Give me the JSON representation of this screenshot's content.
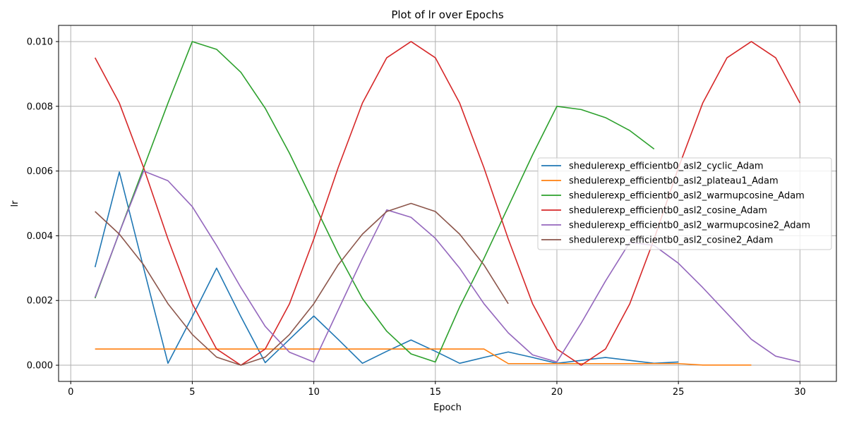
{
  "chart_data": {
    "type": "line",
    "title": "Plot of lr over Epochs",
    "xlabel": "Epoch",
    "ylabel": "lr",
    "xlim": [
      -0.5,
      31.5
    ],
    "ylim": [
      -0.0005,
      0.0105
    ],
    "xticks": [
      0,
      5,
      10,
      15,
      20,
      25,
      30
    ],
    "yticks": [
      0.0,
      0.002,
      0.004,
      0.006,
      0.008,
      0.01
    ],
    "ytick_labels": [
      "0.000",
      "0.002",
      "0.004",
      "0.006",
      "0.008",
      "0.010"
    ],
    "grid": true,
    "legend_position": "center-right",
    "series": [
      {
        "name": "shedulerexp_efficientb0_asl2_cyclic_Adam",
        "color": "#1f77b4",
        "x": [
          1,
          2,
          3,
          4,
          5,
          6,
          7,
          8,
          9,
          10,
          11,
          12,
          13,
          14,
          15,
          16,
          17,
          18,
          19,
          20,
          21,
          22,
          23,
          24,
          25
        ],
        "y": [
          0.00303,
          0.00597,
          0.003,
          6e-05,
          0.0015,
          0.003,
          0.0015,
          8e-05,
          0.0008,
          0.00152,
          0.0008,
          6e-05,
          0.00043,
          0.00078,
          0.00043,
          6e-05,
          0.00024,
          0.00041,
          0.00024,
          6e-05,
          0.00015,
          0.00024,
          0.00015,
          6e-05,
          0.0001
        ]
      },
      {
        "name": "shedulerexp_efficientb0_asl2_plateau1_Adam",
        "color": "#ff7f0e",
        "x": [
          1,
          2,
          3,
          4,
          5,
          6,
          7,
          8,
          9,
          10,
          11,
          12,
          13,
          14,
          15,
          16,
          17,
          18,
          19,
          20,
          21,
          22,
          23,
          24,
          25,
          26,
          27,
          28
        ],
        "y": [
          0.0005,
          0.0005,
          0.0005,
          0.0005,
          0.0005,
          0.0005,
          0.0005,
          0.0005,
          0.0005,
          0.0005,
          0.0005,
          0.0005,
          0.0005,
          0.0005,
          0.0005,
          0.0005,
          0.0005,
          5e-05,
          5e-05,
          5e-05,
          5e-05,
          5e-05,
          5e-05,
          5e-05,
          5e-05,
          5e-06,
          5e-06,
          5e-06
        ]
      },
      {
        "name": "shedulerexp_efficientb0_asl2_warmupcosine_Adam",
        "color": "#2ca02c",
        "x": [
          1,
          2,
          3,
          4,
          5,
          6,
          7,
          8,
          9,
          10,
          11,
          12,
          13,
          14,
          15,
          16,
          17,
          18,
          19,
          20,
          21,
          22,
          23,
          24
        ],
        "y": [
          0.00207,
          0.0041,
          0.0061,
          0.0081,
          0.01,
          0.00976,
          0.00905,
          0.00794,
          0.00655,
          0.005,
          0.00345,
          0.00206,
          0.00105,
          0.00035,
          0.0001,
          0.0018,
          0.0033,
          0.0049,
          0.0065,
          0.008,
          0.0079,
          0.00765,
          0.00725,
          0.00668
        ]
      },
      {
        "name": "shedulerexp_efficientb0_asl2_cosine_Adam",
        "color": "#d62728",
        "x": [
          1,
          2,
          3,
          4,
          5,
          6,
          7,
          8,
          9,
          10,
          11,
          12,
          13,
          14,
          15,
          16,
          17,
          18,
          19,
          20,
          21,
          22,
          23,
          24,
          25,
          26,
          27,
          28,
          29,
          30
        ],
        "y": [
          0.0095,
          0.0081,
          0.0061,
          0.0039,
          0.0019,
          0.0005,
          0.0,
          0.0005,
          0.0019,
          0.0039,
          0.0061,
          0.0081,
          0.0095,
          0.01,
          0.0095,
          0.0081,
          0.0061,
          0.0039,
          0.0019,
          0.0005,
          0.0,
          0.0005,
          0.0019,
          0.0039,
          0.0061,
          0.0081,
          0.0095,
          0.01,
          0.0095,
          0.0081
        ]
      },
      {
        "name": "shedulerexp_efficientb0_asl2_warmupcosine2_Adam",
        "color": "#9467bd",
        "x": [
          1,
          2,
          3,
          4,
          5,
          6,
          7,
          8,
          9,
          10,
          11,
          12,
          13,
          14,
          15,
          16,
          17,
          18,
          19,
          20,
          21,
          22,
          23,
          24,
          25,
          26,
          27,
          28,
          29,
          30
        ],
        "y": [
          0.0021,
          0.0041,
          0.006,
          0.0057,
          0.0049,
          0.0037,
          0.0024,
          0.0012,
          0.0004,
          0.0001,
          0.0017,
          0.0033,
          0.0048,
          0.00457,
          0.00392,
          0.003,
          0.0019,
          0.001,
          0.00032,
          0.0001,
          0.0013,
          0.0026,
          0.0038,
          0.0037,
          0.00315,
          0.0024,
          0.0016,
          0.0008,
          0.00028,
          0.0001
        ]
      },
      {
        "name": "shedulerexp_efficientb0_asl2_cosine2_Adam",
        "color": "#8c564b",
        "x": [
          1,
          2,
          3,
          4,
          5,
          6,
          7,
          8,
          9,
          10,
          11,
          12,
          13,
          14,
          15,
          16,
          17,
          18
        ],
        "y": [
          0.00475,
          0.00405,
          0.0031,
          0.0019,
          0.00095,
          0.00025,
          0.0,
          0.00025,
          0.00095,
          0.0019,
          0.0031,
          0.00405,
          0.00475,
          0.005,
          0.00475,
          0.00405,
          0.0031,
          0.0019
        ]
      }
    ]
  }
}
